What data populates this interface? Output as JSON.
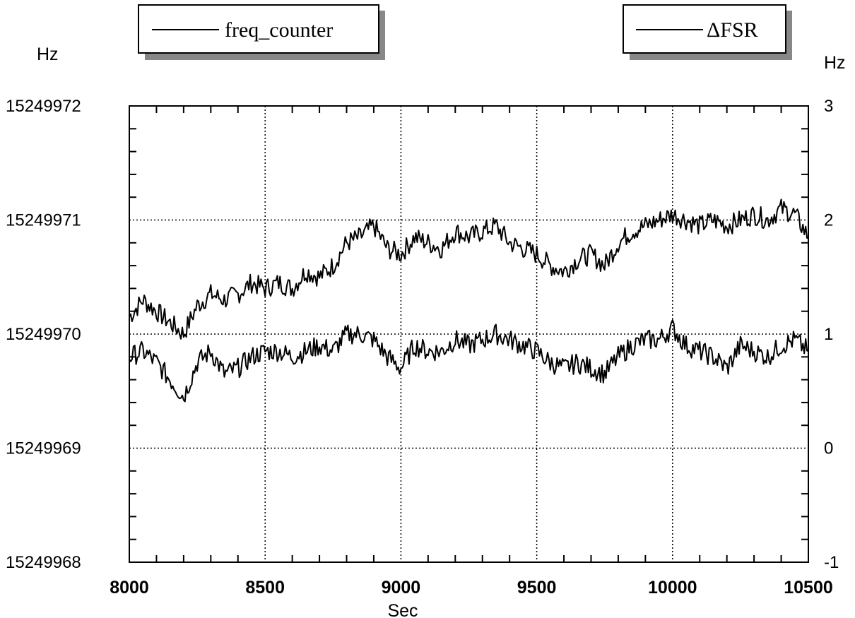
{
  "chart_data": {
    "type": "line",
    "xlabel": "Sec",
    "ylabel_left": "Hz",
    "ylabel_right": "Hz",
    "xlim": [
      8000,
      10500
    ],
    "ylim_left": [
      15249968,
      15249972
    ],
    "ylim_right": [
      -1,
      3
    ],
    "x_ticks": [
      "8000",
      "8500",
      "9000",
      "9500",
      "10000",
      "10500"
    ],
    "y_left_ticks": [
      "15249972",
      "15249971",
      "15249970",
      "15249969",
      "15249968"
    ],
    "y_right_ticks": [
      "3",
      "2",
      "1",
      "0",
      "-1"
    ],
    "grid": true,
    "legend": [
      {
        "label": "freq_counter",
        "position": "top-left"
      },
      {
        "label": "ΔFSR",
        "position": "top-right"
      }
    ],
    "series": [
      {
        "name": "freq_counter",
        "axis": "left",
        "color": "#000000",
        "x": [
          8000,
          8050,
          8100,
          8150,
          8200,
          8250,
          8300,
          8350,
          8400,
          8450,
          8500,
          8550,
          8600,
          8650,
          8700,
          8750,
          8800,
          8850,
          8900,
          8950,
          9000,
          9050,
          9100,
          9150,
          9200,
          9250,
          9300,
          9350,
          9400,
          9450,
          9500,
          9550,
          9600,
          9650,
          9700,
          9750,
          9800,
          9850,
          9900,
          9950,
          10000,
          10050,
          10100,
          10150,
          10200,
          10250,
          10300,
          10350,
          10400,
          10450,
          10500
        ],
        "y": [
          15249970.15,
          15249970.3,
          15249970.2,
          15249970.1,
          15249970.0,
          15249970.25,
          15249970.35,
          15249970.3,
          15249970.35,
          15249970.45,
          15249970.4,
          15249970.45,
          15249970.4,
          15249970.55,
          15249970.5,
          15249970.6,
          15249970.8,
          15249970.85,
          15249970.95,
          15249970.75,
          15249970.7,
          15249970.85,
          15249970.8,
          15249970.75,
          15249970.9,
          15249970.85,
          15249970.9,
          15249970.95,
          15249970.8,
          15249970.75,
          15249970.7,
          15249970.6,
          15249970.55,
          15249970.65,
          15249970.7,
          15249970.6,
          15249970.8,
          15249970.9,
          15249970.95,
          15249971.0,
          15249971.05,
          15249971.0,
          15249970.95,
          15249971.0,
          15249970.95,
          15249971.0,
          15249971.05,
          15249971.0,
          15249971.1,
          15249971.05,
          15249970.85
        ]
      },
      {
        "name": "ΔFSR",
        "axis": "right",
        "color": "#000000",
        "x": [
          8000,
          8050,
          8100,
          8150,
          8200,
          8250,
          8300,
          8350,
          8400,
          8450,
          8500,
          8550,
          8600,
          8650,
          8700,
          8750,
          8800,
          8850,
          8900,
          8950,
          9000,
          9050,
          9100,
          9150,
          9200,
          9250,
          9300,
          9350,
          9400,
          9450,
          9500,
          9550,
          9600,
          9650,
          9700,
          9750,
          9800,
          9850,
          9900,
          9950,
          10000,
          10050,
          10100,
          10150,
          10200,
          10250,
          10300,
          10350,
          10400,
          10450,
          10500
        ],
        "y": [
          0.8,
          0.85,
          0.75,
          0.6,
          0.45,
          0.75,
          0.85,
          0.65,
          0.7,
          0.8,
          0.85,
          0.85,
          0.8,
          0.85,
          0.9,
          0.85,
          1.0,
          1.0,
          0.95,
          0.8,
          0.7,
          0.9,
          0.85,
          0.85,
          0.95,
          0.9,
          0.95,
          1.0,
          0.95,
          0.9,
          0.85,
          0.75,
          0.7,
          0.75,
          0.7,
          0.65,
          0.8,
          0.9,
          0.95,
          0.95,
          1.05,
          0.9,
          0.85,
          0.8,
          0.7,
          0.9,
          0.85,
          0.8,
          0.9,
          0.95,
          0.85
        ]
      }
    ]
  }
}
